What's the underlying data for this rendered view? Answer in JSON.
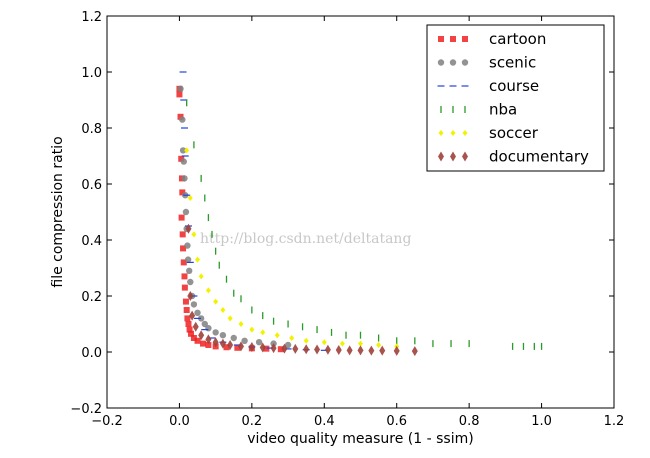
{
  "chart_data": {
    "type": "scatter",
    "xlabel": "video quality measure (1 - ssim)",
    "ylabel": "file compression ratio",
    "xlim": [
      -0.2,
      1.2
    ],
    "ylim": [
      -0.2,
      1.2
    ],
    "xticks": [
      "−0.2",
      "0.0",
      "0.2",
      "0.4",
      "0.6",
      "0.8",
      "1.0",
      "1.2"
    ],
    "yticks": [
      "−0.2",
      "0.0",
      "0.2",
      "0.4",
      "0.6",
      "0.8",
      "1.0",
      "1.2"
    ],
    "xtick_values": [
      -0.2,
      0,
      0.2,
      0.4,
      0.6,
      0.8,
      1.0,
      1.2
    ],
    "ytick_values": [
      -0.2,
      0,
      0.2,
      0.4,
      0.6,
      0.8,
      1.0,
      1.2
    ],
    "grid": false,
    "legend_position": "top-right",
    "watermark": "http://blog.csdn.net/deltatang",
    "series": [
      {
        "name": "cartoon",
        "marker": "square",
        "color": "#ee2222",
        "points": [
          [
            0.0,
            0.94
          ],
          [
            0.0,
            0.92
          ],
          [
            0.003,
            0.84
          ],
          [
            0.005,
            0.69
          ],
          [
            0.007,
            0.62
          ],
          [
            0.008,
            0.57
          ],
          [
            0.006,
            0.48
          ],
          [
            0.009,
            0.42
          ],
          [
            0.01,
            0.37
          ],
          [
            0.012,
            0.32
          ],
          [
            0.014,
            0.27
          ],
          [
            0.015,
            0.23
          ],
          [
            0.018,
            0.18
          ],
          [
            0.02,
            0.15
          ],
          [
            0.022,
            0.12
          ],
          [
            0.025,
            0.1
          ],
          [
            0.028,
            0.08
          ],
          [
            0.032,
            0.065
          ],
          [
            0.04,
            0.05
          ],
          [
            0.05,
            0.04
          ],
          [
            0.065,
            0.03
          ],
          [
            0.08,
            0.025
          ],
          [
            0.1,
            0.02
          ],
          [
            0.13,
            0.017
          ],
          [
            0.16,
            0.015
          ],
          [
            0.2,
            0.013
          ],
          [
            0.24,
            0.012
          ],
          [
            0.28,
            0.01
          ]
        ]
      },
      {
        "name": "scenic",
        "marker": "circle",
        "color": "#808080",
        "points": [
          [
            0.003,
            0.94
          ],
          [
            0.008,
            0.83
          ],
          [
            0.01,
            0.72
          ],
          [
            0.012,
            0.68
          ],
          [
            0.014,
            0.62
          ],
          [
            0.016,
            0.56
          ],
          [
            0.018,
            0.5
          ],
          [
            0.02,
            0.44
          ],
          [
            0.022,
            0.38
          ],
          [
            0.024,
            0.33
          ],
          [
            0.027,
            0.29
          ],
          [
            0.03,
            0.25
          ],
          [
            0.035,
            0.2
          ],
          [
            0.04,
            0.17
          ],
          [
            0.05,
            0.14
          ],
          [
            0.06,
            0.12
          ],
          [
            0.07,
            0.1
          ],
          [
            0.08,
            0.085
          ],
          [
            0.1,
            0.07
          ],
          [
            0.12,
            0.06
          ],
          [
            0.15,
            0.05
          ],
          [
            0.18,
            0.04
          ],
          [
            0.22,
            0.035
          ],
          [
            0.26,
            0.03
          ],
          [
            0.3,
            0.025
          ]
        ]
      },
      {
        "name": "course",
        "marker": "dash",
        "color": "#2244dd",
        "points": [
          [
            0.01,
            1.0
          ],
          [
            0.012,
            0.9
          ],
          [
            0.014,
            0.8
          ],
          [
            0.016,
            0.7
          ],
          [
            0.02,
            0.56
          ],
          [
            0.025,
            0.45
          ],
          [
            0.03,
            0.32
          ],
          [
            0.04,
            0.2
          ],
          [
            0.05,
            0.12
          ],
          [
            0.07,
            0.08
          ],
          [
            0.09,
            0.05
          ],
          [
            0.12,
            0.035
          ],
          [
            0.16,
            0.025
          ],
          [
            0.2,
            0.018
          ],
          [
            0.25,
            0.014
          ],
          [
            0.3,
            0.011
          ],
          [
            0.35,
            0.008
          ],
          [
            0.4,
            0.006
          ]
        ]
      },
      {
        "name": "nba",
        "marker": "tick",
        "color": "#2a9a2a",
        "points": [
          [
            0.02,
            0.89
          ],
          [
            0.04,
            0.74
          ],
          [
            0.06,
            0.62
          ],
          [
            0.07,
            0.55
          ],
          [
            0.08,
            0.48
          ],
          [
            0.09,
            0.42
          ],
          [
            0.1,
            0.36
          ],
          [
            0.11,
            0.31
          ],
          [
            0.13,
            0.26
          ],
          [
            0.15,
            0.21
          ],
          [
            0.17,
            0.19
          ],
          [
            0.2,
            0.15
          ],
          [
            0.23,
            0.13
          ],
          [
            0.26,
            0.11
          ],
          [
            0.3,
            0.1
          ],
          [
            0.34,
            0.09
          ],
          [
            0.38,
            0.08
          ],
          [
            0.42,
            0.07
          ],
          [
            0.46,
            0.06
          ],
          [
            0.5,
            0.06
          ],
          [
            0.55,
            0.05
          ],
          [
            0.6,
            0.04
          ],
          [
            0.65,
            0.04
          ],
          [
            0.7,
            0.03
          ],
          [
            0.75,
            0.03
          ],
          [
            0.8,
            0.03
          ],
          [
            0.92,
            0.02
          ],
          [
            0.95,
            0.02
          ],
          [
            0.98,
            0.02
          ],
          [
            1.0,
            0.02
          ]
        ]
      },
      {
        "name": "soccer",
        "marker": "diamond-small",
        "color": "#f2f200",
        "points": [
          [
            0.02,
            0.72
          ],
          [
            0.03,
            0.55
          ],
          [
            0.04,
            0.42
          ],
          [
            0.05,
            0.33
          ],
          [
            0.06,
            0.27
          ],
          [
            0.08,
            0.22
          ],
          [
            0.1,
            0.18
          ],
          [
            0.12,
            0.15
          ],
          [
            0.14,
            0.12
          ],
          [
            0.17,
            0.1
          ],
          [
            0.2,
            0.08
          ],
          [
            0.23,
            0.07
          ],
          [
            0.27,
            0.06
          ],
          [
            0.31,
            0.05
          ],
          [
            0.35,
            0.04
          ],
          [
            0.4,
            0.035
          ],
          [
            0.45,
            0.03
          ],
          [
            0.5,
            0.03
          ],
          [
            0.55,
            0.025
          ],
          [
            0.6,
            0.02
          ]
        ]
      },
      {
        "name": "documentary",
        "marker": "diamond",
        "color": "#a0403a",
        "points": [
          [
            0.025,
            0.44
          ],
          [
            0.03,
            0.2
          ],
          [
            0.035,
            0.13
          ],
          [
            0.045,
            0.09
          ],
          [
            0.06,
            0.06
          ],
          [
            0.08,
            0.045
          ],
          [
            0.1,
            0.035
          ],
          [
            0.12,
            0.03
          ],
          [
            0.14,
            0.025
          ],
          [
            0.17,
            0.02
          ],
          [
            0.2,
            0.018
          ],
          [
            0.23,
            0.016
          ],
          [
            0.26,
            0.014
          ],
          [
            0.29,
            0.012
          ],
          [
            0.32,
            0.011
          ],
          [
            0.35,
            0.01
          ],
          [
            0.38,
            0.009
          ],
          [
            0.41,
            0.008
          ],
          [
            0.44,
            0.007
          ],
          [
            0.47,
            0.006
          ],
          [
            0.5,
            0.006
          ],
          [
            0.53,
            0.005
          ],
          [
            0.56,
            0.005
          ],
          [
            0.6,
            0.004
          ],
          [
            0.65,
            0.003
          ]
        ]
      }
    ]
  }
}
